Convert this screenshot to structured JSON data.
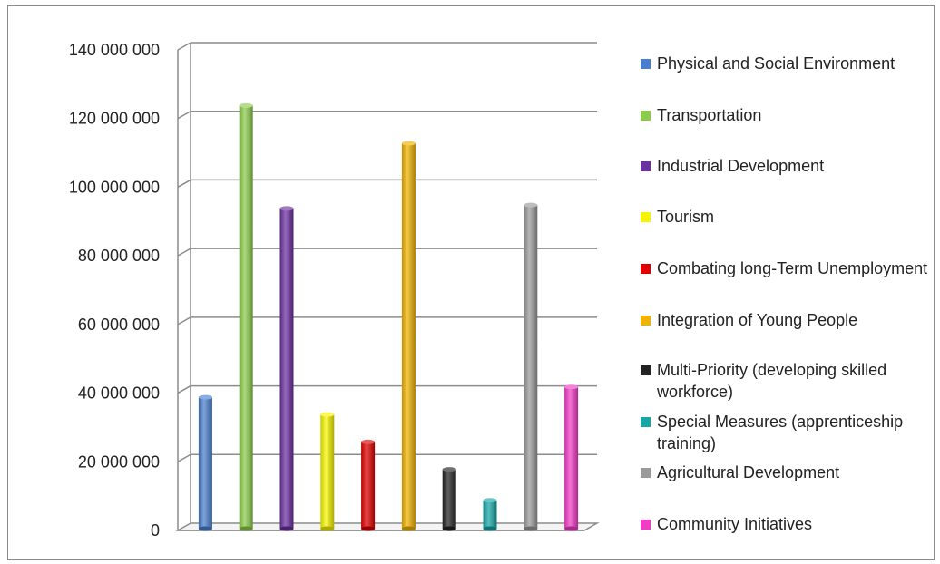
{
  "chart_data": {
    "type": "bar",
    "categories": [
      "Physical and Social Environment",
      "Transportation",
      "Industrial Development",
      "Tourism",
      "Combating long-Term Unemployment",
      "Integration of Young People",
      "Multi-Priority (developing skilled workforce)",
      "Special Measures (apprenticeship training)",
      "Agricultural Development",
      "Community Initiatives"
    ],
    "values": [
      38000000,
      123000000,
      93000000,
      33000000,
      25000000,
      112000000,
      17000000,
      8000000,
      94000000,
      41000000
    ],
    "colors": [
      "#4a7fcf",
      "#8ccc4a",
      "#6a2fa0",
      "#f5f500",
      "#e00000",
      "#f2b200",
      "#222222",
      "#17a6a6",
      "#9a9a9a",
      "#f23cc6"
    ],
    "ylim": [
      0,
      140000000
    ],
    "yticks": [
      0,
      20000000,
      40000000,
      60000000,
      80000000,
      100000000,
      120000000,
      140000000
    ],
    "ytick_labels": [
      "0",
      "20 000 000",
      "40 000 000",
      "60 000 000",
      "80 000 000",
      "100 000 000",
      "120 000 000",
      "140 000 000"
    ],
    "grid": true,
    "legend_position": "right",
    "legend": [
      {
        "label": "Physical and Social Environment"
      },
      {
        "label": "Transportation"
      },
      {
        "label": "Industrial Development"
      },
      {
        "label": "Tourism"
      },
      {
        "label": "Combating long-Term Unemployment"
      },
      {
        "label": "Integration of Young People"
      },
      {
        "label": "Multi-Priority (developing skilled workforce)"
      },
      {
        "label": "Special Measures (apprenticeship training)"
      },
      {
        "label": "Agricultural Development"
      },
      {
        "label": "Community Initiatives"
      }
    ]
  }
}
